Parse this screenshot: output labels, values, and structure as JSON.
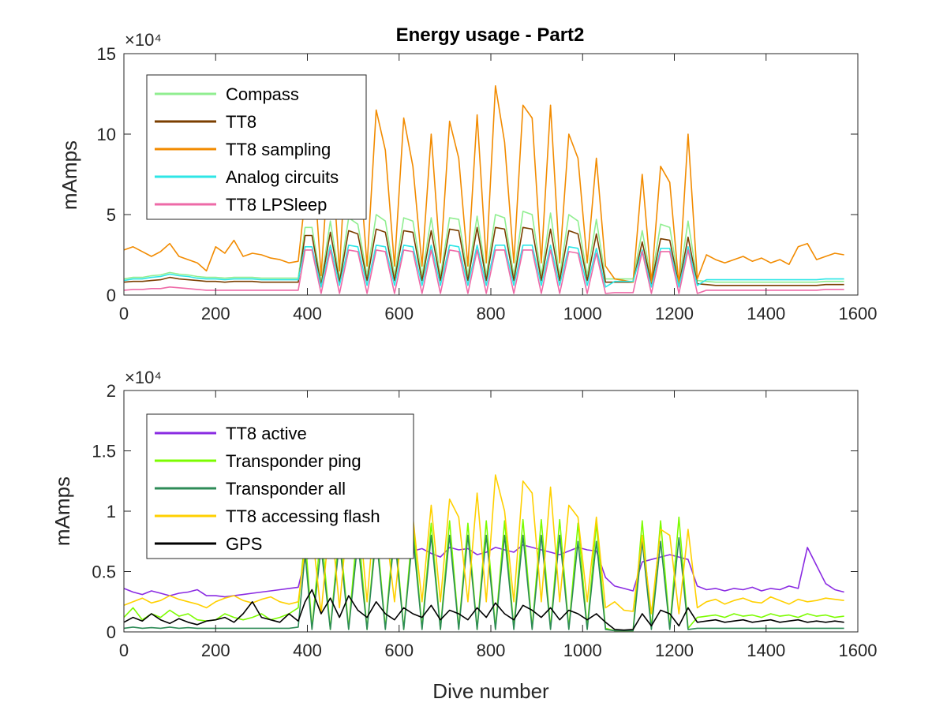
{
  "figure_title": "Energy usage - Part2",
  "chart_data": [
    {
      "type": "line",
      "title": "Energy usage - Part2",
      "xlabel": "",
      "ylabel": "mAmps",
      "y_multiplier": "×10⁴",
      "xlim": [
        0,
        1600
      ],
      "ylim": [
        0,
        150000
      ],
      "xticks": [
        "0",
        "200",
        "400",
        "600",
        "800",
        "1000",
        "1200",
        "1400",
        "1600"
      ],
      "yticks": [
        "0",
        "5",
        "10",
        "15"
      ],
      "legend_position": "top-left",
      "x": [
        0,
        20,
        40,
        60,
        80,
        100,
        120,
        140,
        160,
        180,
        200,
        220,
        240,
        260,
        280,
        300,
        320,
        340,
        360,
        380,
        395,
        410,
        430,
        450,
        470,
        490,
        510,
        530,
        550,
        570,
        590,
        610,
        630,
        650,
        670,
        690,
        710,
        730,
        750,
        770,
        790,
        810,
        830,
        850,
        870,
        890,
        910,
        930,
        950,
        970,
        990,
        1010,
        1030,
        1050,
        1070,
        1090,
        1110,
        1130,
        1150,
        1170,
        1190,
        1210,
        1230,
        1250,
        1270,
        1290,
        1310,
        1330,
        1350,
        1370,
        1390,
        1410,
        1430,
        1450,
        1470,
        1490,
        1510,
        1530,
        1550,
        1570
      ],
      "series": [
        {
          "name": "Compass",
          "color": "#90ee90",
          "values": [
            10000,
            11000,
            11000,
            12000,
            12500,
            14000,
            13000,
            12500,
            11500,
            11000,
            11000,
            10500,
            11000,
            11000,
            11000,
            10500,
            10500,
            10500,
            10500,
            10500,
            42000,
            42000,
            8000,
            46000,
            10000,
            48000,
            44000,
            12000,
            50000,
            46000,
            12000,
            48000,
            46000,
            12000,
            48000,
            12000,
            48000,
            47000,
            12000,
            49000,
            12000,
            50000,
            48000,
            12000,
            52000,
            50000,
            12000,
            51000,
            12000,
            50000,
            46000,
            12000,
            47000,
            10000,
            10000,
            10000,
            10000,
            40000,
            9000,
            44000,
            42000,
            8000,
            46000,
            9000,
            8500,
            8000,
            8000,
            8000,
            8000,
            8000,
            8000,
            8000,
            8000,
            8000,
            8000,
            8000,
            8000,
            8500,
            8500,
            8500
          ]
        },
        {
          "name": "TT8",
          "color": "#7b3f00",
          "values": [
            8000,
            8500,
            8500,
            9000,
            9500,
            11000,
            10000,
            9500,
            9000,
            8500,
            8500,
            8000,
            8500,
            8500,
            8500,
            8000,
            8000,
            8000,
            8000,
            8000,
            37000,
            37000,
            6000,
            39000,
            8000,
            40000,
            38000,
            9000,
            41000,
            39000,
            9000,
            40000,
            39000,
            9000,
            40000,
            9000,
            41000,
            40000,
            9000,
            42000,
            9000,
            42000,
            41000,
            9000,
            42000,
            41000,
            9000,
            41000,
            9000,
            40000,
            38000,
            9000,
            38000,
            8000,
            8000,
            8000,
            8000,
            33000,
            7000,
            35000,
            34000,
            6000,
            36000,
            7000,
            6500,
            6000,
            6000,
            6000,
            6000,
            6000,
            6000,
            6000,
            6000,
            6000,
            6000,
            6000,
            6000,
            6500,
            6500,
            6500
          ]
        },
        {
          "name": "TT8 sampling",
          "color": "#f28b00",
          "values": [
            28000,
            30000,
            27000,
            24000,
            27000,
            32000,
            24000,
            22000,
            20000,
            15000,
            30000,
            26000,
            34000,
            24000,
            26000,
            25000,
            23000,
            22000,
            20000,
            21000,
            60000,
            95000,
            12000,
            100000,
            15000,
            120000,
            95000,
            18000,
            115000,
            90000,
            18000,
            110000,
            80000,
            18000,
            100000,
            20000,
            108000,
            85000,
            18000,
            112000,
            20000,
            130000,
            95000,
            20000,
            118000,
            110000,
            20000,
            118000,
            20000,
            100000,
            85000,
            20000,
            85000,
            18000,
            10000,
            9000,
            8000,
            75000,
            8000,
            80000,
            70000,
            6000,
            100000,
            10000,
            25000,
            22000,
            20000,
            22000,
            24000,
            21000,
            23000,
            20000,
            22000,
            19000,
            30000,
            32000,
            22000,
            24000,
            26000,
            25000
          ]
        },
        {
          "name": "Analog circuits",
          "color": "#2ee6e6",
          "values": [
            9000,
            10000,
            10000,
            11000,
            11500,
            13000,
            12000,
            11500,
            10500,
            10000,
            10000,
            9500,
            10000,
            10000,
            10000,
            9500,
            9500,
            9500,
            9500,
            9500,
            30000,
            30000,
            5000,
            31000,
            6000,
            31000,
            30000,
            6000,
            31000,
            30000,
            6000,
            31000,
            30000,
            6000,
            31000,
            6000,
            31000,
            30000,
            6000,
            31000,
            6000,
            31000,
            31000,
            6000,
            31000,
            31000,
            6000,
            31000,
            6000,
            30000,
            29000,
            6000,
            29000,
            5000,
            8500,
            8500,
            8500,
            28000,
            5000,
            29000,
            29000,
            5000,
            30000,
            6000,
            9500,
            9500,
            9500,
            9500,
            9500,
            9500,
            9500,
            9500,
            9500,
            9500,
            9500,
            9500,
            9500,
            10000,
            10000,
            10000
          ]
        },
        {
          "name": "TT8 LPSleep",
          "color": "#ee6aa7",
          "values": [
            3000,
            3500,
            3500,
            4000,
            4000,
            5000,
            4500,
            4000,
            3500,
            3000,
            3000,
            3000,
            3000,
            3000,
            3000,
            3000,
            3000,
            3000,
            3000,
            3000,
            28000,
            28000,
            1000,
            28000,
            1000,
            28000,
            27000,
            1000,
            28000,
            27000,
            1000,
            28000,
            27000,
            1000,
            28000,
            1000,
            28000,
            27000,
            1000,
            28000,
            1000,
            28000,
            28000,
            1000,
            28000,
            28000,
            1000,
            28000,
            1000,
            27000,
            26000,
            1000,
            26000,
            1000,
            1500,
            1500,
            1500,
            27000,
            1000,
            27000,
            27000,
            1000,
            28000,
            1000,
            3000,
            3000,
            3000,
            3000,
            3000,
            3000,
            3000,
            3000,
            3000,
            3000,
            3000,
            3000,
            3000,
            3500,
            3500,
            3500
          ]
        }
      ]
    },
    {
      "type": "line",
      "title": "",
      "xlabel": "Dive number",
      "ylabel": "mAmps",
      "y_multiplier": "×10⁴",
      "xlim": [
        0,
        1600
      ],
      "ylim": [
        0,
        20000
      ],
      "xticks": [
        "0",
        "200",
        "400",
        "600",
        "800",
        "1000",
        "1200",
        "1400",
        "1600"
      ],
      "yticks": [
        "0",
        "0.5",
        "1",
        "1.5",
        "2"
      ],
      "legend_position": "top-left",
      "x": [
        0,
        20,
        40,
        60,
        80,
        100,
        120,
        140,
        160,
        180,
        200,
        220,
        240,
        260,
        280,
        300,
        320,
        340,
        360,
        380,
        395,
        410,
        430,
        450,
        470,
        490,
        510,
        530,
        550,
        570,
        590,
        610,
        630,
        650,
        670,
        690,
        710,
        730,
        750,
        770,
        790,
        810,
        830,
        850,
        870,
        890,
        910,
        930,
        950,
        970,
        990,
        1010,
        1030,
        1050,
        1070,
        1090,
        1110,
        1130,
        1150,
        1170,
        1190,
        1210,
        1230,
        1250,
        1270,
        1290,
        1310,
        1330,
        1350,
        1370,
        1390,
        1410,
        1430,
        1450,
        1470,
        1490,
        1510,
        1530,
        1550,
        1570
      ],
      "series": [
        {
          "name": "TT8 active",
          "color": "#8a2be2",
          "values": [
            3600,
            3300,
            3100,
            3400,
            3200,
            3000,
            3200,
            3300,
            3500,
            3000,
            3000,
            2900,
            3000,
            3100,
            3200,
            3300,
            3400,
            3500,
            3600,
            3700,
            6000,
            6200,
            6500,
            6800,
            6300,
            6600,
            7000,
            6500,
            6800,
            7000,
            6500,
            6400,
            6700,
            6900,
            6500,
            6200,
            7000,
            6800,
            6900,
            6400,
            6600,
            7000,
            6800,
            6600,
            7200,
            7000,
            6800,
            6600,
            6400,
            6700,
            7000,
            6800,
            6700,
            4500,
            3800,
            3600,
            3400,
            5800,
            6000,
            6200,
            6400,
            6200,
            6000,
            3800,
            3500,
            3600,
            3400,
            3600,
            3500,
            3700,
            3400,
            3600,
            3500,
            3800,
            3600,
            7000,
            5500,
            4000,
            3500,
            3300
          ]
        },
        {
          "name": "Transponder ping",
          "color": "#7cfc00",
          "values": [
            1200,
            2000,
            1000,
            1500,
            1200,
            1800,
            1300,
            1500,
            1000,
            900,
            1000,
            1500,
            1200,
            1000,
            1200,
            1500,
            1000,
            1200,
            1500,
            2000,
            8000,
            300,
            8500,
            200,
            8500,
            300,
            9000,
            200,
            8800,
            300,
            9000,
            200,
            9000,
            300,
            9000,
            200,
            9200,
            300,
            9000,
            200,
            9200,
            300,
            9200,
            300,
            9300,
            300,
            9300,
            300,
            9300,
            300,
            9000,
            300,
            9000,
            300,
            100,
            100,
            100,
            9200,
            300,
            9200,
            300,
            9500,
            300,
            1200,
            1300,
            1400,
            1200,
            1500,
            1300,
            1400,
            1200,
            1500,
            1300,
            1400,
            1200,
            1500,
            1300,
            1400,
            1200,
            1300
          ]
        },
        {
          "name": "Transponder all",
          "color": "#2e8b57",
          "values": [
            300,
            400,
            300,
            350,
            300,
            400,
            300,
            350,
            300,
            300,
            300,
            300,
            300,
            300,
            300,
            300,
            300,
            300,
            300,
            400,
            6500,
            200,
            7000,
            200,
            7500,
            200,
            7500,
            200,
            8000,
            200,
            8000,
            200,
            8000,
            200,
            8000,
            200,
            8000,
            200,
            8000,
            200,
            8000,
            200,
            8000,
            200,
            8000,
            200,
            8000,
            200,
            8000,
            200,
            7500,
            200,
            7500,
            200,
            100,
            100,
            100,
            7500,
            200,
            7500,
            200,
            7800,
            200,
            300,
            300,
            300,
            300,
            300,
            300,
            300,
            300,
            300,
            300,
            300,
            300,
            300,
            300,
            300,
            300,
            300
          ]
        },
        {
          "name": "TT8 accessing flash",
          "color": "#ffd000",
          "values": [
            2200,
            2500,
            2800,
            2400,
            2600,
            3000,
            2700,
            2500,
            2300,
            2000,
            2500,
            2800,
            3000,
            2600,
            2400,
            2700,
            2900,
            2500,
            2300,
            2500,
            7000,
            8500,
            1500,
            10000,
            2000,
            10500,
            11000,
            2500,
            11500,
            9000,
            2500,
            10000,
            9500,
            2500,
            10500,
            2500,
            11000,
            9500,
            2500,
            11500,
            2500,
            13000,
            10000,
            2500,
            12500,
            11500,
            2500,
            12000,
            2500,
            10500,
            9500,
            2500,
            9500,
            2000,
            2500,
            1800,
            1700,
            8000,
            1500,
            8500,
            8000,
            1500,
            8500,
            2000,
            2500,
            2700,
            2300,
            2600,
            2800,
            2500,
            2400,
            2900,
            2600,
            2300,
            2700,
            2500,
            2600,
            2800,
            2700,
            2600
          ]
        },
        {
          "name": "GPS",
          "color": "#000000",
          "values": [
            800,
            1200,
            900,
            1500,
            1000,
            700,
            1100,
            800,
            600,
            900,
            1000,
            1200,
            800,
            1500,
            2500,
            1200,
            1000,
            800,
            1500,
            900,
            2500,
            3500,
            1500,
            2800,
            1200,
            3000,
            1800,
            1200,
            2500,
            1500,
            1000,
            2000,
            1500,
            1200,
            2200,
            1000,
            1800,
            1500,
            1000,
            2000,
            1200,
            2400,
            1500,
            1000,
            2200,
            1800,
            1200,
            2000,
            1000,
            1800,
            1500,
            1000,
            1500,
            800,
            200,
            150,
            200,
            1500,
            500,
            1800,
            1500,
            500,
            2000,
            800,
            900,
            1000,
            800,
            900,
            1000,
            800,
            900,
            1000,
            800,
            900,
            1000,
            800,
            900,
            800,
            900,
            800
          ]
        }
      ]
    }
  ]
}
